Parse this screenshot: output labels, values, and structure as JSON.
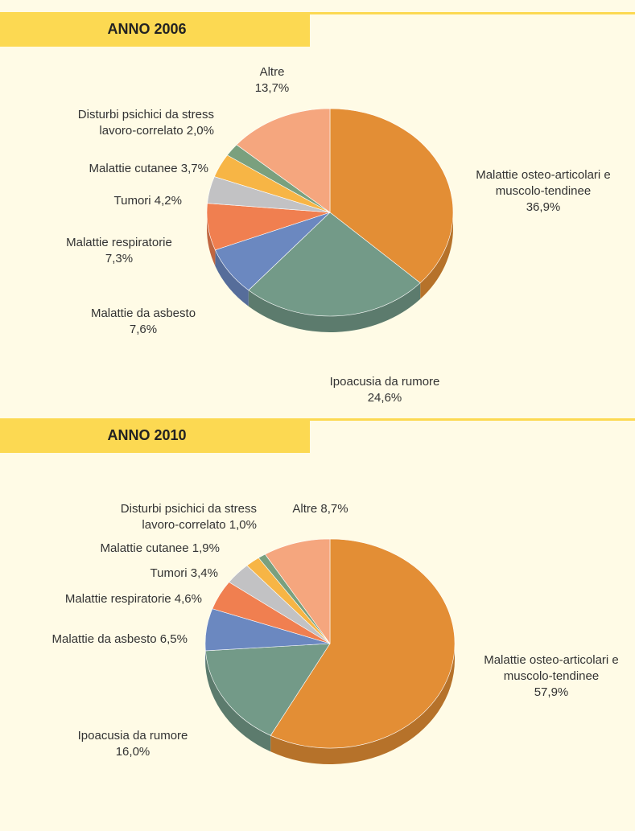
{
  "chart_data": [
    {
      "type": "pie",
      "title": "ANNO 2006",
      "categories": [
        "Malattie osteo-articolari e muscolo-tendinee",
        "Ipoacusia da rumore",
        "Malattie da asbesto",
        "Malattie respiratorie",
        "Tumori",
        "Malattie cutanee",
        "Disturbi psichici da stress lavoro-correlato",
        "Altre"
      ],
      "values": [
        36.9,
        24.6,
        7.6,
        7.3,
        4.2,
        3.7,
        2.0,
        13.7
      ],
      "value_labels": [
        "36,9%",
        "24,6%",
        "7,6%",
        "7,3%",
        "4,2%",
        "3,7%",
        "2,0%",
        "13,7%"
      ],
      "colors": [
        "#e38e35",
        "#739a88",
        "#6b88c0",
        "#f07f50",
        "#c2c2c4",
        "#f7b545",
        "#7aa07e",
        "#f5a67e"
      ]
    },
    {
      "type": "pie",
      "title": "ANNO 2010",
      "categories": [
        "Malattie osteo-articolari e muscolo-tendinee",
        "Ipoacusia da rumore",
        "Malattie da asbesto",
        "Malattie respiratorie",
        "Tumori",
        "Malattie cutanee",
        "Disturbi psichici da stress lavoro-correlato",
        "Altre"
      ],
      "values": [
        57.9,
        16.0,
        6.5,
        4.6,
        3.4,
        1.9,
        1.0,
        8.7
      ],
      "value_labels": [
        "57,9%",
        "16,0%",
        "6,5%",
        "4,6%",
        "3,4%",
        "1,9%",
        "1,0%",
        "8,7%"
      ],
      "colors": [
        "#e38e35",
        "#739a88",
        "#6b88c0",
        "#f07f50",
        "#c2c2c4",
        "#f7b545",
        "#7aa07e",
        "#f5a67e"
      ]
    }
  ]
}
